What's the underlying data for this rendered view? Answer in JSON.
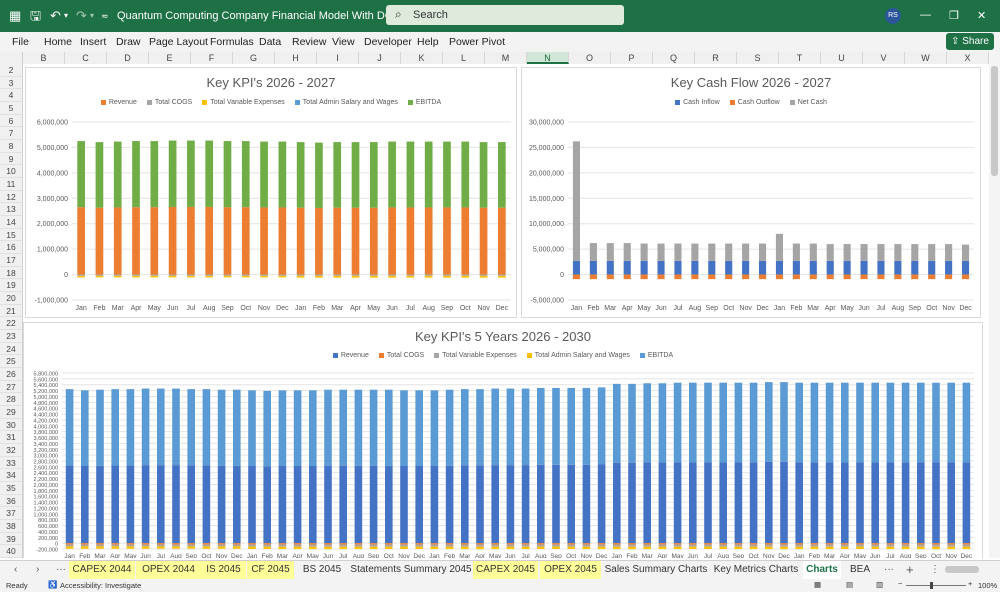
{
  "title_bar": {
    "document_title": "Quantum Computing Company Financial Model With DCF.xlsx  -  Excel",
    "search_label": "Search",
    "avatar_initials": "RS"
  },
  "menu": [
    "File",
    "Home",
    "Insert",
    "Draw",
    "Page Layout",
    "Formulas",
    "Data",
    "Review",
    "View",
    "Developer",
    "Help",
    "Power Pivot"
  ],
  "share_label": "Share",
  "columns": [
    "B",
    "C",
    "D",
    "E",
    "F",
    "G",
    "H",
    "I",
    "J",
    "K",
    "L",
    "M",
    "N",
    "O",
    "P",
    "Q",
    "R",
    "S",
    "T",
    "U",
    "V",
    "W",
    "X"
  ],
  "selected_column": "N",
  "rows": [
    "2",
    "3",
    "4",
    "5",
    "6",
    "7",
    "8",
    "9",
    "10",
    "11",
    "12",
    "13",
    "14",
    "15",
    "16",
    "17",
    "18",
    "19",
    "20",
    "21",
    "22",
    "23",
    "24",
    "25",
    "26",
    "27",
    "28",
    "29",
    "30",
    "31",
    "32",
    "33",
    "34",
    "35",
    "36",
    "37",
    "38",
    "39",
    "40"
  ],
  "sheet_tabs": [
    {
      "label": "CAPEX 2044",
      "color": "yellow"
    },
    {
      "label": "OPEX 2044",
      "color": "yellow"
    },
    {
      "label": "IS 2045",
      "color": "yellow"
    },
    {
      "label": "CF 2045",
      "color": "yellow"
    },
    {
      "label": "BS 2045",
      "color": "none"
    },
    {
      "label": "Statements Summary 2045",
      "color": "none"
    },
    {
      "label": "CAPEX 2045",
      "color": "yellow"
    },
    {
      "label": "OPEX 2045",
      "color": "yellow"
    },
    {
      "label": "Sales Summary Charts",
      "color": "none"
    },
    {
      "label": "Key Metrics Charts",
      "color": "none"
    },
    {
      "label": "Charts",
      "color": "active"
    },
    {
      "label": "BEA",
      "color": "none"
    }
  ],
  "status": {
    "ready": "Ready",
    "accessibility": "Accessibility: Investigate",
    "zoom": "100%"
  },
  "chart_data": [
    {
      "type": "bar",
      "stacked": true,
      "title": "Key KPI's 2026 - 2027",
      "categories": [
        "Jan",
        "Feb",
        "Mar",
        "Apr",
        "May",
        "Jun",
        "Jul",
        "Aug",
        "Sep",
        "Oct",
        "Nov",
        "Dec",
        "Jan",
        "Feb",
        "Mar",
        "Apr",
        "May",
        "Jun",
        "Jul",
        "Aug",
        "Sep",
        "Oct",
        "Nov",
        "Dec"
      ],
      "series": [
        {
          "name": "Revenue",
          "color": "#ed7d31",
          "values": [
            2650000,
            2630000,
            2640000,
            2650000,
            2650000,
            2660000,
            2660000,
            2660000,
            2650000,
            2650000,
            2640000,
            2640000,
            2630000,
            2620000,
            2630000,
            2630000,
            2630000,
            2640000,
            2640000,
            2640000,
            2640000,
            2640000,
            2630000,
            2630000
          ]
        },
        {
          "name": "Total COGS",
          "color": "#a5a5a5",
          "values": [
            -50000,
            -50000,
            -50000,
            -50000,
            -50000,
            -50000,
            -50000,
            -50000,
            -50000,
            -50000,
            -50000,
            -50000,
            -50000,
            -50000,
            -50000,
            -50000,
            -50000,
            -50000,
            -50000,
            -50000,
            -50000,
            -50000,
            -50000,
            -50000
          ]
        },
        {
          "name": "Total Variable Expenses",
          "color": "#ffc000",
          "values": [
            -60000,
            -60000,
            -60000,
            -60000,
            -60000,
            -60000,
            -60000,
            -60000,
            -60000,
            -60000,
            -60000,
            -60000,
            -70000,
            -70000,
            -70000,
            -70000,
            -70000,
            -70000,
            -70000,
            -70000,
            -70000,
            -70000,
            -70000,
            -70000
          ]
        },
        {
          "name": "Total Admin Salary and Wages",
          "color": "#5b9bd5",
          "values": [
            0,
            0,
            0,
            0,
            0,
            0,
            0,
            0,
            0,
            0,
            0,
            0,
            0,
            0,
            0,
            0,
            0,
            0,
            0,
            0,
            0,
            0,
            0,
            0
          ]
        },
        {
          "name": "EBITDA",
          "color": "#70ad47",
          "values": [
            2600000,
            2580000,
            2590000,
            2600000,
            2600000,
            2610000,
            2610000,
            2610000,
            2600000,
            2600000,
            2590000,
            2590000,
            2580000,
            2570000,
            2580000,
            2580000,
            2580000,
            2590000,
            2590000,
            2590000,
            2590000,
            2590000,
            2580000,
            2580000
          ]
        }
      ],
      "ylim": [
        -1000000,
        6000000
      ],
      "yticks": [
        "6,000,000",
        "5,000,000",
        "4,000,000",
        "3,000,000",
        "2,000,000",
        "1,000,000",
        "0",
        "-1,000,000"
      ],
      "legend": "top",
      "grid": true
    },
    {
      "type": "bar",
      "stacked": true,
      "title": "Key Cash Flow 2026 - 2027",
      "categories": [
        "Jan",
        "Feb",
        "Mar",
        "Apr",
        "May",
        "Jun",
        "Jul",
        "Aug",
        "Sep",
        "Oct",
        "Nov",
        "Dec",
        "Jan",
        "Feb",
        "Mar",
        "Apr",
        "May",
        "Jun",
        "Jul",
        "Aug",
        "Sep",
        "Oct",
        "Nov",
        "Dec"
      ],
      "series": [
        {
          "name": "Cash Inflow",
          "color": "#4472c4",
          "values": [
            2700000,
            2700000,
            2700000,
            2700000,
            2700000,
            2700000,
            2700000,
            2700000,
            2700000,
            2700000,
            2700000,
            2700000,
            2700000,
            2700000,
            2700000,
            2700000,
            2700000,
            2700000,
            2700000,
            2700000,
            2700000,
            2700000,
            2700000,
            2700000
          ]
        },
        {
          "name": "Cash Outflow",
          "color": "#ed7d31",
          "values": [
            -900000,
            -900000,
            -900000,
            -900000,
            -900000,
            -900000,
            -900000,
            -900000,
            -900000,
            -900000,
            -900000,
            -900000,
            -900000,
            -900000,
            -900000,
            -900000,
            -900000,
            -900000,
            -900000,
            -900000,
            -900000,
            -900000,
            -900000,
            -900000
          ]
        },
        {
          "name": "Net Cash",
          "color": "#a5a5a5",
          "values": [
            23500000,
            3500000,
            3500000,
            3500000,
            3400000,
            3400000,
            3400000,
            3400000,
            3400000,
            3400000,
            3400000,
            3400000,
            5300000,
            3400000,
            3400000,
            3300000,
            3300000,
            3300000,
            3300000,
            3300000,
            3300000,
            3300000,
            3300000,
            3200000
          ]
        }
      ],
      "ylim": [
        -5000000,
        30000000
      ],
      "yticks": [
        "30,000,000",
        "25,000,000",
        "20,000,000",
        "15,000,000",
        "10,000,000",
        "5,000,000",
        "0",
        "-5,000,000"
      ],
      "legend": "top",
      "grid": true
    },
    {
      "type": "bar",
      "stacked": true,
      "title": "Key KPI's 5 Years 2026 - 2030",
      "categories": [
        "Jan",
        "Feb",
        "Mar",
        "Apr",
        "May",
        "Jun",
        "Jul",
        "Aug",
        "Sep",
        "Oct",
        "Nov",
        "Dec",
        "Jan",
        "Feb",
        "Mar",
        "Apr",
        "May",
        "Jun",
        "Jul",
        "Aug",
        "Sep",
        "Oct",
        "Nov",
        "Dec",
        "Jan",
        "Feb",
        "Mar",
        "Apr",
        "May",
        "Jun",
        "Jul",
        "Aug",
        "Sep",
        "Oct",
        "Nov",
        "Dec",
        "Jan",
        "Feb",
        "Mar",
        "Apr",
        "May",
        "Jun",
        "Jul",
        "Aug",
        "Sep",
        "Oct",
        "Nov",
        "Dec",
        "Jan",
        "Feb",
        "Mar",
        "Apr",
        "May",
        "Jun",
        "Jul",
        "Aug",
        "Sep",
        "Oct",
        "Nov",
        "Dec"
      ],
      "series": [
        {
          "name": "Revenue",
          "color": "#4472c4",
          "values": [
            2650000,
            2630000,
            2640000,
            2650000,
            2650000,
            2660000,
            2660000,
            2660000,
            2650000,
            2650000,
            2640000,
            2640000,
            2630000,
            2620000,
            2630000,
            2630000,
            2630000,
            2640000,
            2640000,
            2640000,
            2640000,
            2640000,
            2630000,
            2630000,
            2630000,
            2640000,
            2650000,
            2650000,
            2660000,
            2660000,
            2660000,
            2670000,
            2670000,
            2670000,
            2670000,
            2680000,
            2740000,
            2740000,
            2750000,
            2750000,
            2760000,
            2760000,
            2760000,
            2760000,
            2760000,
            2760000,
            2770000,
            2770000,
            2760000,
            2760000,
            2760000,
            2760000,
            2760000,
            2760000,
            2760000,
            2760000,
            2760000,
            2760000,
            2760000,
            2760000
          ]
        },
        {
          "name": "Total COGS",
          "color": "#ed7d31",
          "values": [
            -50000,
            -50000,
            -50000,
            -50000,
            -50000,
            -50000,
            -50000,
            -50000,
            -50000,
            -50000,
            -50000,
            -50000,
            -50000,
            -50000,
            -50000,
            -50000,
            -50000,
            -50000,
            -50000,
            -50000,
            -50000,
            -50000,
            -50000,
            -50000,
            -50000,
            -50000,
            -50000,
            -50000,
            -50000,
            -50000,
            -50000,
            -50000,
            -50000,
            -50000,
            -50000,
            -50000,
            -50000,
            -50000,
            -50000,
            -50000,
            -50000,
            -50000,
            -50000,
            -50000,
            -50000,
            -50000,
            -50000,
            -50000,
            -50000,
            -50000,
            -50000,
            -50000,
            -50000,
            -50000,
            -50000,
            -50000,
            -50000,
            -50000,
            -50000,
            -50000
          ]
        },
        {
          "name": "Total Variable Expenses",
          "color": "#a5a5a5",
          "values": [
            -60000,
            -60000,
            -60000,
            -60000,
            -60000,
            -60000,
            -60000,
            -60000,
            -60000,
            -60000,
            -60000,
            -60000,
            -70000,
            -70000,
            -70000,
            -70000,
            -70000,
            -70000,
            -70000,
            -70000,
            -70000,
            -70000,
            -70000,
            -70000,
            -70000,
            -70000,
            -70000,
            -70000,
            -70000,
            -70000,
            -70000,
            -70000,
            -70000,
            -70000,
            -70000,
            -70000,
            -70000,
            -70000,
            -70000,
            -70000,
            -70000,
            -70000,
            -70000,
            -70000,
            -70000,
            -70000,
            -70000,
            -70000,
            -70000,
            -70000,
            -70000,
            -70000,
            -70000,
            -70000,
            -70000,
            -70000,
            -70000,
            -70000,
            -70000,
            -70000
          ]
        },
        {
          "name": "Total Admin Salary and Wages",
          "color": "#ffc000",
          "values": [
            -80000,
            -80000,
            -80000,
            -80000,
            -80000,
            -80000,
            -80000,
            -80000,
            -80000,
            -80000,
            -80000,
            -80000,
            -80000,
            -80000,
            -80000,
            -80000,
            -80000,
            -80000,
            -80000,
            -80000,
            -80000,
            -80000,
            -80000,
            -80000,
            -80000,
            -80000,
            -80000,
            -80000,
            -80000,
            -80000,
            -80000,
            -80000,
            -80000,
            -80000,
            -80000,
            -80000,
            -80000,
            -80000,
            -80000,
            -80000,
            -80000,
            -80000,
            -80000,
            -80000,
            -80000,
            -80000,
            -80000,
            -80000,
            -80000,
            -80000,
            -80000,
            -80000,
            -80000,
            -80000,
            -80000,
            -80000,
            -80000,
            -80000,
            -80000,
            -80000
          ]
        },
        {
          "name": "EBITDA",
          "color": "#5b9bd5",
          "values": [
            2600000,
            2580000,
            2590000,
            2600000,
            2600000,
            2610000,
            2610000,
            2610000,
            2600000,
            2600000,
            2590000,
            2590000,
            2580000,
            2570000,
            2580000,
            2580000,
            2580000,
            2590000,
            2590000,
            2590000,
            2590000,
            2590000,
            2580000,
            2580000,
            2580000,
            2590000,
            2600000,
            2600000,
            2610000,
            2610000,
            2610000,
            2620000,
            2620000,
            2620000,
            2620000,
            2630000,
            2690000,
            2690000,
            2700000,
            2700000,
            2710000,
            2710000,
            2710000,
            2710000,
            2710000,
            2710000,
            2720000,
            2720000,
            2710000,
            2710000,
            2710000,
            2710000,
            2710000,
            2710000,
            2710000,
            2710000,
            2710000,
            2710000,
            2710000,
            2710000
          ]
        }
      ],
      "ylim": [
        -200000,
        5800000
      ],
      "yticks": [
        "5,800,000",
        "5,600,000",
        "5,400,000",
        "5,200,000",
        "5,000,000",
        "4,800,000",
        "4,600,000",
        "4,400,000",
        "4,200,000",
        "4,000,000",
        "3,800,000",
        "3,600,000",
        "3,400,000",
        "3,200,000",
        "3,000,000",
        "2,800,000",
        "2,600,000",
        "2,400,000",
        "2,200,000",
        "2,000,000",
        "1,800,000",
        "1,600,000",
        "1,400,000",
        "1,200,000",
        "1,000,000",
        "800,000",
        "600,000",
        "400,000",
        "200,000",
        "0",
        "-200,000"
      ],
      "legend": "top",
      "grid": true
    }
  ]
}
